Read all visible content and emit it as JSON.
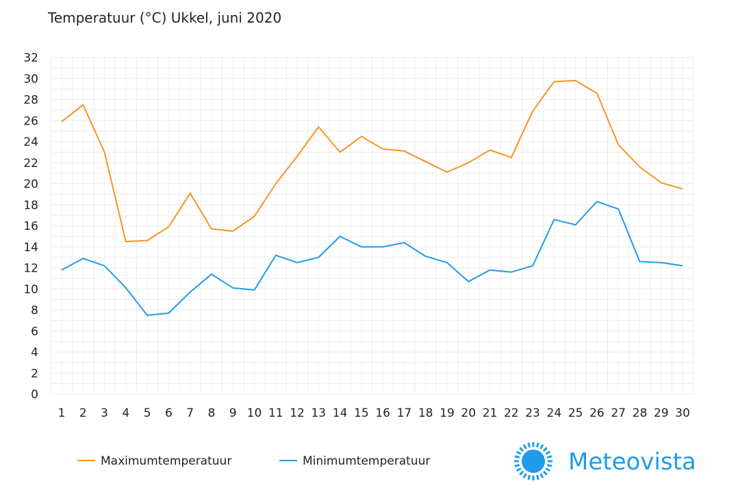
{
  "chart_data": {
    "type": "line",
    "title": "Temperatuur (°C)  Ukkel, juni 2020",
    "x": [
      "1",
      "2",
      "3",
      "4",
      "5",
      "6",
      "7",
      "8",
      "9",
      "10",
      "11",
      "12",
      "13",
      "14",
      "15",
      "16",
      "17",
      "18",
      "19",
      "20",
      "21",
      "22",
      "23",
      "24",
      "25",
      "26",
      "27",
      "28",
      "29",
      "30"
    ],
    "ylim": [
      0,
      32
    ],
    "yticks": [
      0,
      2,
      4,
      6,
      8,
      10,
      12,
      14,
      16,
      18,
      20,
      22,
      24,
      26,
      28,
      30,
      32
    ],
    "grid": true,
    "legend_position": "bottom-left",
    "series": [
      {
        "name": "Maximumtemperatuur",
        "color": "#f7931e",
        "values": [
          25.9,
          27.5,
          23.0,
          14.5,
          14.6,
          15.9,
          19.1,
          15.7,
          15.5,
          16.9,
          20.0,
          22.6,
          25.4,
          23.0,
          24.5,
          23.3,
          23.1,
          22.1,
          21.1,
          22.0,
          23.2,
          22.5,
          26.9,
          29.7,
          29.8,
          28.6,
          23.7,
          21.6,
          20.1,
          19.5
        ]
      },
      {
        "name": "Minimumtemperatuur",
        "color": "#1e9be9",
        "values": [
          11.8,
          12.9,
          12.2,
          10.1,
          7.5,
          7.7,
          9.7,
          11.4,
          10.1,
          9.9,
          13.2,
          12.5,
          13.0,
          15.0,
          14.0,
          14.0,
          14.4,
          13.1,
          12.5,
          10.7,
          11.8,
          11.6,
          12.2,
          16.6,
          16.1,
          18.3,
          17.6,
          12.6,
          12.5,
          12.2
        ]
      }
    ]
  },
  "logo": {
    "text": "Meteovista",
    "color": "#1e9be9",
    "icon": "sun-icon"
  }
}
